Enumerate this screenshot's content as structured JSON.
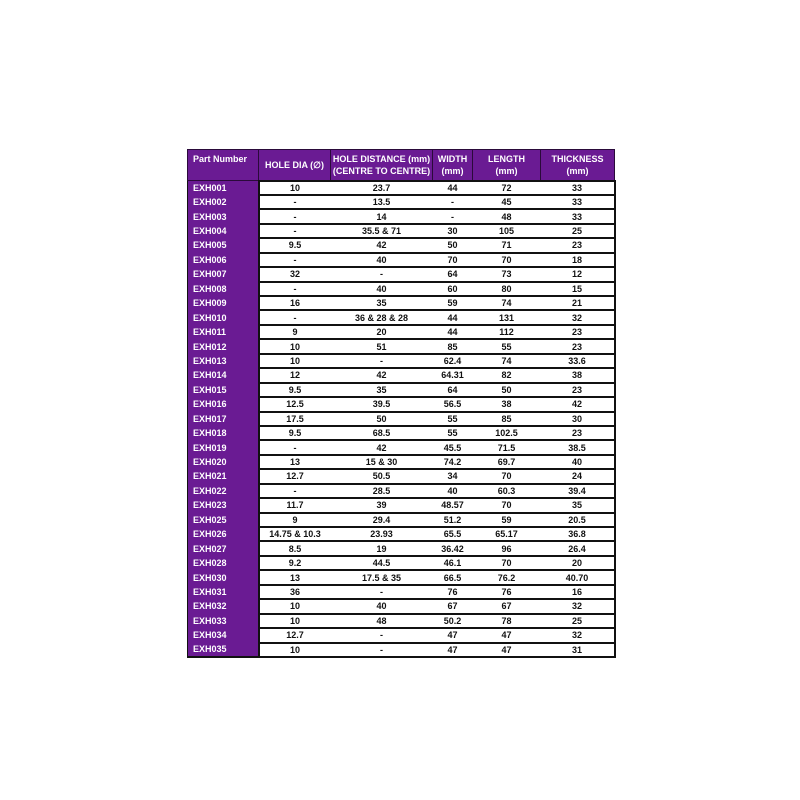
{
  "table": {
    "headers": [
      [
        "Part Number",
        ""
      ],
      [
        "HOLE DIA (∅)",
        ""
      ],
      [
        "HOLE DISTANCE (mm)",
        "(CENTRE TO CENTRE)"
      ],
      [
        "WIDTH",
        "(mm)"
      ],
      [
        "LENGTH",
        "(mm)"
      ],
      [
        "THICKNESS",
        "(mm)"
      ]
    ],
    "rows": [
      [
        "EXH001",
        "10",
        "23.7",
        "44",
        "72",
        "33"
      ],
      [
        "EXH002",
        "-",
        "13.5",
        "-",
        "45",
        "33"
      ],
      [
        "EXH003",
        "-",
        "14",
        "-",
        "48",
        "33"
      ],
      [
        "EXH004",
        "-",
        "35.5 & 71",
        "30",
        "105",
        "25"
      ],
      [
        "EXH005",
        "9.5",
        "42",
        "50",
        "71",
        "23"
      ],
      [
        "EXH006",
        "-",
        "40",
        "70",
        "70",
        "18"
      ],
      [
        "EXH007",
        "32",
        "-",
        "64",
        "73",
        "12"
      ],
      [
        "EXH008",
        "-",
        "40",
        "60",
        "80",
        "15"
      ],
      [
        "EXH009",
        "16",
        "35",
        "59",
        "74",
        "21"
      ],
      [
        "EXH010",
        "-",
        "36 & 28 & 28",
        "44",
        "131",
        "32"
      ],
      [
        "EXH011",
        "9",
        "20",
        "44",
        "112",
        "23"
      ],
      [
        "EXH012",
        "10",
        "51",
        "85",
        "55",
        "23"
      ],
      [
        "EXH013",
        "10",
        "-",
        "62.4",
        "74",
        "33.6"
      ],
      [
        "EXH014",
        "12",
        "42",
        "64.31",
        "82",
        "38"
      ],
      [
        "EXH015",
        "9.5",
        "35",
        "64",
        "50",
        "23"
      ],
      [
        "EXH016",
        "12.5",
        "39.5",
        "56.5",
        "38",
        "42"
      ],
      [
        "EXH017",
        "17.5",
        "50",
        "55",
        "85",
        "30"
      ],
      [
        "EXH018",
        "9.5",
        "68.5",
        "55",
        "102.5",
        "23"
      ],
      [
        "EXH019",
        "-",
        "42",
        "45.5",
        "71.5",
        "38.5"
      ],
      [
        "EXH020",
        "13",
        "15 & 30",
        "74.2",
        "69.7",
        "40"
      ],
      [
        "EXH021",
        "12.7",
        "50.5",
        "34",
        "70",
        "24"
      ],
      [
        "EXH022",
        "-",
        "28.5",
        "40",
        "60.3",
        "39.4"
      ],
      [
        "EXH023",
        "11.7",
        "39",
        "48.57",
        "70",
        "35"
      ],
      [
        "EXH025",
        "9",
        "29.4",
        "51.2",
        "59",
        "20.5"
      ],
      [
        "EXH026",
        "14.75 & 10.3",
        "23.93",
        "65.5",
        "65.17",
        "36.8"
      ],
      [
        "EXH027",
        "8.5",
        "19",
        "36.42",
        "96",
        "26.4"
      ],
      [
        "EXH028",
        "9.2",
        "44.5",
        "46.1",
        "70",
        "20"
      ],
      [
        "EXH030",
        "13",
        "17.5 & 35",
        "66.5",
        "76.2",
        "40.70"
      ],
      [
        "EXH031",
        "36",
        "-",
        "76",
        "76",
        "16"
      ],
      [
        "EXH032",
        "10",
        "40",
        "67",
        "67",
        "32"
      ],
      [
        "EXH033",
        "10",
        "48",
        "50.2",
        "78",
        "25"
      ],
      [
        "EXH034",
        "12.7",
        "-",
        "47",
        "47",
        "32"
      ],
      [
        "EXH035",
        "10",
        "-",
        "47",
        "47",
        "31"
      ]
    ]
  },
  "colors": {
    "header_bg": "#6a1b93",
    "header_text": "#ffffff",
    "border": "#111111"
  }
}
